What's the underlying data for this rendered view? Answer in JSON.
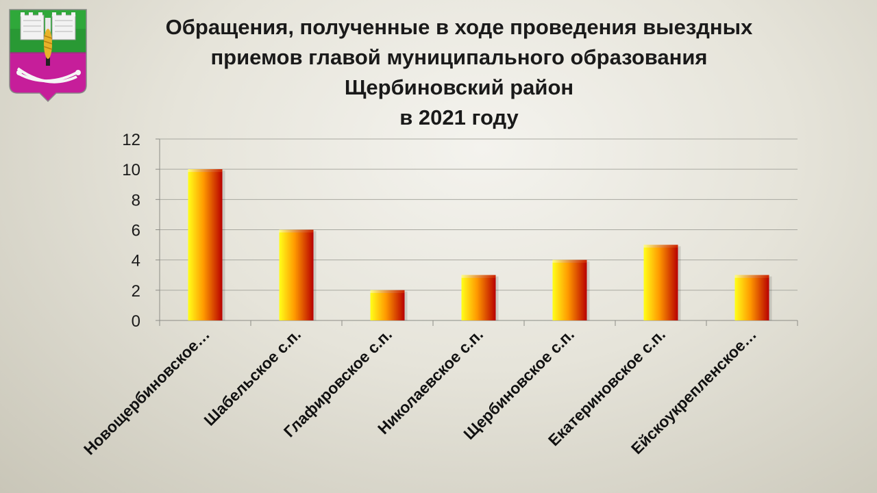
{
  "title_lines": [
    "Обращения, полученные в ходе проведения выездных",
    "приемов главой муниципального образования",
    "Щербиновский район",
    "в 2021 году"
  ],
  "emblem": {
    "icon": "coat-of-arms-icon",
    "colors": {
      "top": "#2fa83a",
      "bottom": "#c61e9a",
      "wall": "#f2f2f2",
      "wheat": "#e8b22a"
    }
  },
  "colors": {
    "bar_light": "#ffff1a",
    "bar_mid": "#ff9a00",
    "bar_dark": "#b80000",
    "grid": "#a8a8a0",
    "axis": "#8c8c86"
  },
  "chart_data": {
    "type": "bar",
    "title": "Обращения, полученные в ходе проведения выездных приемов главой муниципального образования Щербиновский район в 2021 году",
    "categories": [
      "Новощербиновское…",
      "Шабельское с.п.",
      "Глафировское с.п.",
      "Николаевское с.п.",
      "Щербиновское с.п.",
      "Екатериновское с.п.",
      "Ейскоукрепленское…"
    ],
    "values": [
      10,
      6,
      2,
      3,
      4,
      5,
      3
    ],
    "ylim": [
      0,
      12
    ],
    "yticks": [
      "0",
      "2",
      "4",
      "6",
      "8",
      "10",
      "12"
    ],
    "grid": true,
    "legend": "none"
  }
}
